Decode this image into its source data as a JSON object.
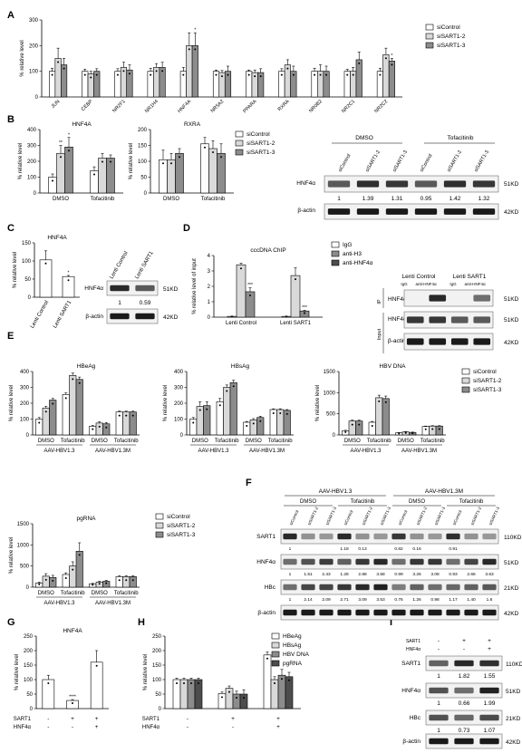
{
  "panel_letters": [
    "A",
    "B",
    "C",
    "D",
    "E",
    "F",
    "G",
    "H",
    "I"
  ],
  "common": {
    "ylabel_relative": "% relative level",
    "ylabel_input": "% relative level of input",
    "legend_sicontrol": "siControl",
    "legend_sisart1_2": "siSART1-2",
    "legend_sisart1_3": "siSART1-3",
    "dmso": "DMSO",
    "tofacitinib": "Tofacitinib",
    "aav13": "AAV-HBV1.3",
    "aav13m": "AAV-HBV1.3M",
    "beta_actin": "β-actin",
    "hnf4a": "HNF4α",
    "sart1": "SART1",
    "hbc": "HBc",
    "kd51": "51KD",
    "kd42": "42KD",
    "kd110": "110KD",
    "kd21": "21KD",
    "lenti_control": "Lenti Control",
    "lenti_sart1": "Lenti SART1"
  },
  "chart_data": [
    {
      "id": "A",
      "type": "bar",
      "ylim": [
        0,
        300
      ],
      "yticks": [
        0,
        100,
        200,
        300
      ],
      "categories": [
        "JUN",
        "CEBP",
        "NR2F1",
        "NR1H4",
        "HNF4A",
        "NR5A2",
        "PPARA",
        "RXRA",
        "NR0B2",
        "NR2C1",
        "NR2C2"
      ],
      "series": [
        {
          "name": "siControl",
          "values": [
            100,
            100,
            100,
            100,
            100,
            100,
            100,
            100,
            100,
            100,
            100
          ]
        },
        {
          "name": "siSART1-2",
          "values": [
            150,
            90,
            115,
            115,
            200,
            95,
            95,
            125,
            100,
            100,
            165
          ]
        },
        {
          "name": "siSART1-3",
          "values": [
            125,
            100,
            105,
            115,
            200,
            100,
            95,
            100,
            100,
            145,
            140
          ]
        }
      ],
      "errors": [
        [
          12,
          8,
          10,
          12,
          15,
          5,
          5,
          10,
          12,
          8,
          12
        ],
        [
          40,
          10,
          20,
          15,
          50,
          8,
          10,
          20,
          25,
          15,
          25
        ],
        [
          25,
          10,
          20,
          20,
          50,
          20,
          15,
          20,
          20,
          30,
          10
        ]
      ],
      "stars": [
        "",
        "",
        "",
        "",
        "*",
        "",
        "",
        "",
        "",
        "",
        "*"
      ]
    },
    {
      "id": "B1",
      "type": "bar",
      "title": "HNF4A",
      "ylim": [
        0,
        400
      ],
      "yticks": [
        0,
        100,
        200,
        300,
        400
      ],
      "categories": [
        "DMSO",
        "Tofacitinib"
      ],
      "series": [
        {
          "name": "siControl",
          "values": [
            100,
            140
          ]
        },
        {
          "name": "siSART1-2",
          "values": [
            250,
            220
          ]
        },
        {
          "name": "siSART1-3",
          "values": [
            290,
            220
          ]
        }
      ],
      "errors": [
        [
          20,
          25
        ],
        [
          50,
          30
        ],
        [
          60,
          20
        ]
      ],
      "stars": [
        [
          "",
          "**",
          "*"
        ],
        [
          "",
          "",
          ""
        ]
      ]
    },
    {
      "id": "B2",
      "type": "bar",
      "title": "RXRA",
      "ylim": [
        0,
        200
      ],
      "yticks": [
        0,
        50,
        100,
        150,
        200
      ],
      "categories": [
        "DMSO",
        "Tofacitinib"
      ],
      "series": [
        {
          "name": "siControl",
          "values": [
            105,
            155
          ]
        },
        {
          "name": "siSART1-2",
          "values": [
            105,
            140
          ]
        },
        {
          "name": "siSART1-3",
          "values": [
            125,
            125
          ]
        }
      ],
      "errors": [
        [
          30,
          20
        ],
        [
          20,
          25
        ],
        [
          15,
          30
        ]
      ]
    },
    {
      "id": "C",
      "type": "bar",
      "title": "HNF4A",
      "ylim": [
        0,
        150
      ],
      "yticks": [
        0,
        50,
        100,
        150
      ],
      "categories": [
        "Lenti Control",
        "Lenti SART1"
      ],
      "values": [
        103,
        57
      ],
      "errors": [
        25,
        3
      ],
      "stars": [
        "",
        "*"
      ]
    },
    {
      "id": "D",
      "type": "bar",
      "title": "cccDNA ChIP",
      "ylim": [
        0,
        4
      ],
      "yticks": [
        0,
        1,
        2,
        3,
        4
      ],
      "categories": [
        "Lenti Control",
        "Lenti SART1"
      ],
      "series": [
        {
          "name": "IgG",
          "values": [
            0.05,
            0.05
          ]
        },
        {
          "name": "anti-H3",
          "values": [
            3.4,
            2.7
          ]
        },
        {
          "name": "anti-HNF4α",
          "values": [
            1.65,
            0.4
          ]
        }
      ],
      "errors": [
        [
          0.02,
          0.02
        ],
        [
          0.1,
          0.5
        ],
        [
          0.25,
          0.05
        ]
      ],
      "stars": [
        [
          "",
          "",
          "***"
        ],
        [
          "",
          "",
          "***"
        ]
      ]
    },
    {
      "id": "E1",
      "type": "bar",
      "title": "HBeAg",
      "ylim": [
        0,
        400
      ],
      "yticks": [
        0,
        100,
        200,
        300,
        400
      ],
      "groups": [
        "AAV-HBV1.3",
        "AAV-HBV1.3M"
      ],
      "categories": [
        "DMSO",
        "Tofacitinib",
        "DMSO",
        "Tofacitinib"
      ],
      "series": [
        {
          "name": "siControl",
          "values": [
            100,
            255,
            55,
            145
          ]
        },
        {
          "name": "siSART1-2",
          "values": [
            170,
            375,
            75,
            145
          ]
        },
        {
          "name": "siSART1-3",
          "values": [
            220,
            350,
            70,
            145
          ]
        }
      ],
      "errors": [
        [
          10,
          10,
          5,
          5
        ],
        [
          10,
          15,
          8,
          5
        ],
        [
          10,
          15,
          8,
          5
        ]
      ]
    },
    {
      "id": "E2",
      "type": "bar",
      "title": "HBsAg",
      "ylim": [
        0,
        400
      ],
      "yticks": [
        0,
        100,
        200,
        300,
        400
      ],
      "groups": [
        "AAV-HBV1.3",
        "AAV-HBV1.3M"
      ],
      "categories": [
        "DMSO",
        "Tofacitinib",
        "DMSO",
        "Tofacitinib"
      ],
      "series": [
        {
          "name": "siControl",
          "values": [
            100,
            210,
            80,
            160
          ]
        },
        {
          "name": "siSART1-2",
          "values": [
            180,
            300,
            95,
            160
          ]
        },
        {
          "name": "siSART1-3",
          "values": [
            185,
            330,
            110,
            155
          ]
        }
      ],
      "errors": [
        [
          10,
          20,
          5,
          5
        ],
        [
          30,
          15,
          8,
          5
        ],
        [
          25,
          15,
          8,
          5
        ]
      ]
    },
    {
      "id": "E3",
      "type": "bar",
      "title": "HBV DNA",
      "ylim": [
        0,
        1500
      ],
      "yticks": [
        0,
        500,
        1000,
        1500
      ],
      "groups": [
        "AAV-HBV1.3",
        "AAV-HBV1.3M"
      ],
      "categories": [
        "DMSO",
        "Tofacitinib",
        "DMSO",
        "Tofacitinib"
      ],
      "series": [
        {
          "name": "siControl",
          "values": [
            100,
            300,
            50,
            200
          ]
        },
        {
          "name": "siSART1-2",
          "values": [
            330,
            880,
            70,
            210
          ]
        },
        {
          "name": "siSART1-3",
          "values": [
            330,
            860,
            60,
            210
          ]
        }
      ],
      "errors": [
        [
          10,
          20,
          5,
          10
        ],
        [
          20,
          60,
          8,
          10
        ],
        [
          20,
          60,
          8,
          10
        ]
      ]
    },
    {
      "id": "E4",
      "type": "bar",
      "title": "pgRNA",
      "ylim": [
        0,
        1500
      ],
      "yticks": [
        0,
        500,
        1000,
        1500
      ],
      "groups": [
        "AAV-HBV1.3",
        "AAV-HBV1.3M"
      ],
      "categories": [
        "DMSO",
        "Tofacitinib",
        "DMSO",
        "Tofacitinib"
      ],
      "series": [
        {
          "name": "siControl",
          "values": [
            100,
            300,
            80,
            250
          ]
        },
        {
          "name": "siSART1-2",
          "values": [
            260,
            500,
            120,
            250
          ]
        },
        {
          "name": "siSART1-3",
          "values": [
            230,
            850,
            140,
            250
          ]
        }
      ],
      "errors": [
        [
          20,
          40,
          10,
          20
        ],
        [
          60,
          100,
          20,
          20
        ],
        [
          50,
          200,
          20,
          20
        ]
      ]
    },
    {
      "id": "G",
      "type": "bar",
      "title": "HNF4A",
      "ylim": [
        0,
        250
      ],
      "yticks": [
        0,
        50,
        100,
        150,
        200,
        250
      ],
      "conditions": {
        "SART1": [
          "-",
          "+",
          "+"
        ],
        "HNF4α": [
          "-",
          "-",
          "+"
        ]
      },
      "values": [
        100,
        28,
        160
      ],
      "errors": [
        15,
        3,
        40
      ],
      "stars": [
        "",
        "****",
        ""
      ]
    },
    {
      "id": "H",
      "type": "bar",
      "ylim": [
        0,
        250
      ],
      "yticks": [
        0,
        50,
        100,
        150,
        200,
        250
      ],
      "conditions": {
        "SART1": [
          "-",
          "+",
          "+"
        ],
        "HNF4α": [
          "-",
          "-",
          "+"
        ]
      },
      "series": [
        {
          "name": "HBeAg",
          "values": [
            100,
            52,
            185
          ]
        },
        {
          "name": "HBsAg",
          "values": [
            100,
            70,
            100
          ]
        },
        {
          "name": "HBV DNA",
          "values": [
            100,
            50,
            115
          ]
        },
        {
          "name": "pgRNA",
          "values": [
            100,
            50,
            110
          ]
        }
      ],
      "errors": [
        [
          5,
          5,
          10
        ],
        [
          5,
          8,
          10
        ],
        [
          5,
          10,
          20
        ],
        [
          5,
          15,
          15
        ]
      ]
    }
  ],
  "blots": {
    "B": {
      "top_groups": [
        "DMSO",
        "Tofacitinib"
      ],
      "lanes": [
        "siControl",
        "siSART1-2",
        "siSART1-3",
        "siControl",
        "siSART1-2",
        "siSART1-3"
      ],
      "quant": [
        "1",
        "1.39",
        "1.31",
        "0.95",
        "1.42",
        "1.32"
      ]
    },
    "C": {
      "lanes": [
        "Lenti Control",
        "Lenti SART1"
      ],
      "quant": [
        "1",
        "0.59"
      ]
    },
    "D": {
      "groups": [
        "Lenti Control",
        "Lenti SART1"
      ],
      "lanes": [
        "IgG",
        "anti-HNF4α",
        "IgG",
        "anti-HNF4α"
      ],
      "ip_label": "IP",
      "input_label": "Input"
    },
    "F": {
      "groups": [
        "AAV-HBV1.3",
        "AAV-HBV1.3M"
      ],
      "sub": [
        "DMSO",
        "Tofacitinib",
        "DMSO",
        "Tofacitinib"
      ],
      "lanes": [
        "siControl",
        "siSART1-2",
        "siSART1-3",
        "siControl",
        "siSART1-2",
        "siSART1-3",
        "siControl",
        "siSART1-2",
        "siSART1-3",
        "siControl",
        "siSART1-2",
        "siSART1-3"
      ],
      "sart1_quant": [
        "1",
        "",
        "",
        "1.18",
        "0.13",
        "",
        "0.82",
        "0.16",
        "",
        "0.91",
        "",
        ""
      ],
      "hnf4a_quant": [
        "1",
        "1.51",
        "2.43",
        "1.28",
        "2.88",
        "3.58",
        "0.99",
        "3.26",
        "3.08",
        "0.93",
        "2.66",
        "3.63"
      ],
      "hbc_quant": [
        "1",
        "2.14",
        "2.09",
        "2.71",
        "3.09",
        "3.53",
        "0.76",
        "1.26",
        "0.98",
        "1.17",
        "1.40",
        "1.6"
      ]
    },
    "I": {
      "sart1_row": [
        "-",
        "+",
        "+"
      ],
      "hnf4a_row": [
        "-",
        "-",
        "+"
      ],
      "sart1_quant": [
        "1",
        "1.82",
        "1.55"
      ],
      "hnf4a_quant": [
        "1",
        "0.66",
        "1.99"
      ],
      "hbc_quant": [
        "1",
        "0.73",
        "1.07"
      ]
    }
  },
  "colors": {
    "white": "#ffffff",
    "light": "#d9d9d9",
    "mid": "#8c8c8c",
    "dark": "#4d4d4d",
    "band": "#1a1a1a"
  }
}
